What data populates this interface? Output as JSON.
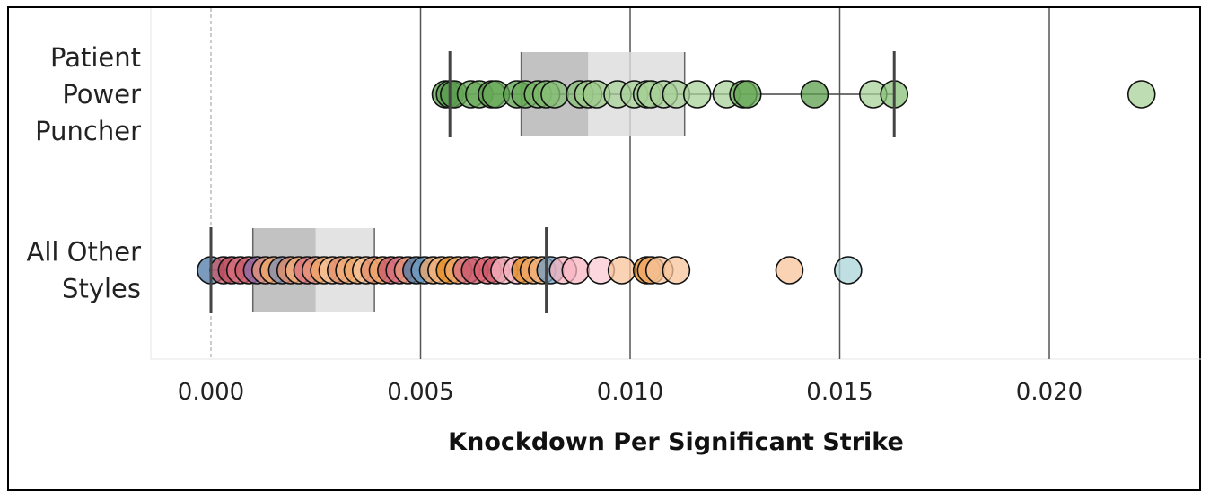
{
  "chart_data": {
    "type": "scatter",
    "subtype": "jittered box-and-whisker plot",
    "xlabel": "Knockdown Per Significant Strike",
    "xlim": [
      -0.0015,
      0.0236
    ],
    "xticks": [
      0.0,
      0.005,
      0.01,
      0.015,
      0.02
    ],
    "xtick_labels": [
      "0.000",
      "0.005",
      "0.010",
      "0.015",
      "0.020"
    ],
    "grid": "vertical lines at ticks; dashed reference line at 0",
    "categories": [
      {
        "id": "patient",
        "label_lines": [
          "Patient",
          "Power",
          "Puncher"
        ]
      },
      {
        "id": "others",
        "label_lines": [
          "All Other",
          "Styles"
        ]
      }
    ],
    "series": [
      {
        "category": "patient",
        "box": {
          "whisker_low": 0.0057,
          "q1": 0.0074,
          "median": 0.009,
          "q3": 0.0113,
          "whisker_high": 0.0163
        },
        "points": [
          {
            "x": 0.0056,
            "c": "#5c9f4f"
          },
          {
            "x": 0.0057,
            "c": "#5c9f4f"
          },
          {
            "x": 0.0058,
            "c": "#5c9f4f"
          },
          {
            "x": 0.0062,
            "c": "#6aab5a"
          },
          {
            "x": 0.0064,
            "c": "#6aab5a"
          },
          {
            "x": 0.0067,
            "c": "#5c9f4f"
          },
          {
            "x": 0.0068,
            "c": "#6aab5a"
          },
          {
            "x": 0.0073,
            "c": "#5c9f4f"
          },
          {
            "x": 0.0075,
            "c": "#6aab5a"
          },
          {
            "x": 0.0078,
            "c": "#7cb86a"
          },
          {
            "x": 0.008,
            "c": "#7cb86a"
          },
          {
            "x": 0.0082,
            "c": "#88c078"
          },
          {
            "x": 0.0088,
            "c": "#88c078"
          },
          {
            "x": 0.009,
            "c": "#9ecb8c"
          },
          {
            "x": 0.0092,
            "c": "#9ecb8c"
          },
          {
            "x": 0.0097,
            "c": "#a8d198"
          },
          {
            "x": 0.0101,
            "c": "#a8d198"
          },
          {
            "x": 0.0104,
            "c": "#9ecb8c"
          },
          {
            "x": 0.0105,
            "c": "#a8d198"
          },
          {
            "x": 0.0108,
            "c": "#a8d198"
          },
          {
            "x": 0.0111,
            "c": "#a8d198"
          },
          {
            "x": 0.0116,
            "c": "#a8d198"
          },
          {
            "x": 0.0123,
            "c": "#a8d198"
          },
          {
            "x": 0.0127,
            "c": "#6aab5a"
          },
          {
            "x": 0.0128,
            "c": "#6aab5a"
          },
          {
            "x": 0.0144,
            "c": "#5c9f4f"
          },
          {
            "x": 0.0158,
            "c": "#a8d198"
          },
          {
            "x": 0.0163,
            "c": "#88c078"
          },
          {
            "x": 0.0222,
            "c": "#a8d198"
          }
        ]
      },
      {
        "category": "others",
        "box": {
          "whisker_low": 0.0,
          "q1": 0.001,
          "median": 0.0025,
          "q3": 0.0039,
          "whisker_high": 0.008
        },
        "points": [
          {
            "x": 0.0,
            "c": "#4e79a7"
          },
          {
            "x": 0.0003,
            "c": "#c9596a"
          },
          {
            "x": 0.0005,
            "c": "#b94b5c"
          },
          {
            "x": 0.0007,
            "c": "#d9727f"
          },
          {
            "x": 0.0009,
            "c": "#c9596a"
          },
          {
            "x": 0.0011,
            "c": "#8e6aa7"
          },
          {
            "x": 0.0013,
            "c": "#e8957a"
          },
          {
            "x": 0.0015,
            "c": "#f0a86a"
          },
          {
            "x": 0.0017,
            "c": "#7f8fb4"
          },
          {
            "x": 0.0019,
            "c": "#e38c6a"
          },
          {
            "x": 0.0021,
            "c": "#f3b27c"
          },
          {
            "x": 0.0023,
            "c": "#d9727f"
          },
          {
            "x": 0.0025,
            "c": "#e8957a"
          },
          {
            "x": 0.0027,
            "c": "#f0a86a"
          },
          {
            "x": 0.0029,
            "c": "#f7c49a"
          },
          {
            "x": 0.0031,
            "c": "#e38c6a"
          },
          {
            "x": 0.0033,
            "c": "#f3b27c"
          },
          {
            "x": 0.0035,
            "c": "#f0a86a"
          },
          {
            "x": 0.0037,
            "c": "#f7c49a"
          },
          {
            "x": 0.0039,
            "c": "#e38c6a"
          },
          {
            "x": 0.0041,
            "c": "#f0a86a"
          },
          {
            "x": 0.0043,
            "c": "#c9596a"
          },
          {
            "x": 0.0045,
            "c": "#d9727f"
          },
          {
            "x": 0.0047,
            "c": "#e8957a"
          },
          {
            "x": 0.0049,
            "c": "#4e79a7"
          },
          {
            "x": 0.0051,
            "c": "#6f9ec4"
          },
          {
            "x": 0.0053,
            "c": "#f0a86a"
          },
          {
            "x": 0.0055,
            "c": "#f3b27c"
          },
          {
            "x": 0.0057,
            "c": "#e38c1f"
          },
          {
            "x": 0.0059,
            "c": "#f0a86a"
          },
          {
            "x": 0.0061,
            "c": "#d9727f"
          },
          {
            "x": 0.0063,
            "c": "#c9596a"
          },
          {
            "x": 0.0066,
            "c": "#e06070"
          },
          {
            "x": 0.0068,
            "c": "#c9596a"
          },
          {
            "x": 0.007,
            "c": "#f7b6c2"
          },
          {
            "x": 0.0073,
            "c": "#f7b6c2"
          },
          {
            "x": 0.0075,
            "c": "#e38c1f"
          },
          {
            "x": 0.0077,
            "c": "#f0a86a"
          },
          {
            "x": 0.0079,
            "c": "#f3b27c"
          },
          {
            "x": 0.0081,
            "c": "#6f9ec4"
          },
          {
            "x": 0.0084,
            "c": "#f7b6c2"
          },
          {
            "x": 0.0087,
            "c": "#f7b6c2"
          },
          {
            "x": 0.0093,
            "c": "#fbc9d2"
          },
          {
            "x": 0.0098,
            "c": "#f7c49a"
          },
          {
            "x": 0.0104,
            "c": "#e38c1f"
          },
          {
            "x": 0.0105,
            "c": "#f0a86a"
          },
          {
            "x": 0.0107,
            "c": "#f7c49a"
          },
          {
            "x": 0.0111,
            "c": "#f7c49a"
          },
          {
            "x": 0.0138,
            "c": "#f7c49a"
          },
          {
            "x": 0.0152,
            "c": "#a9d4d8"
          }
        ]
      }
    ],
    "box_colors": {
      "lower": "#b3b3b3",
      "upper": "#dcdcdc"
    }
  }
}
